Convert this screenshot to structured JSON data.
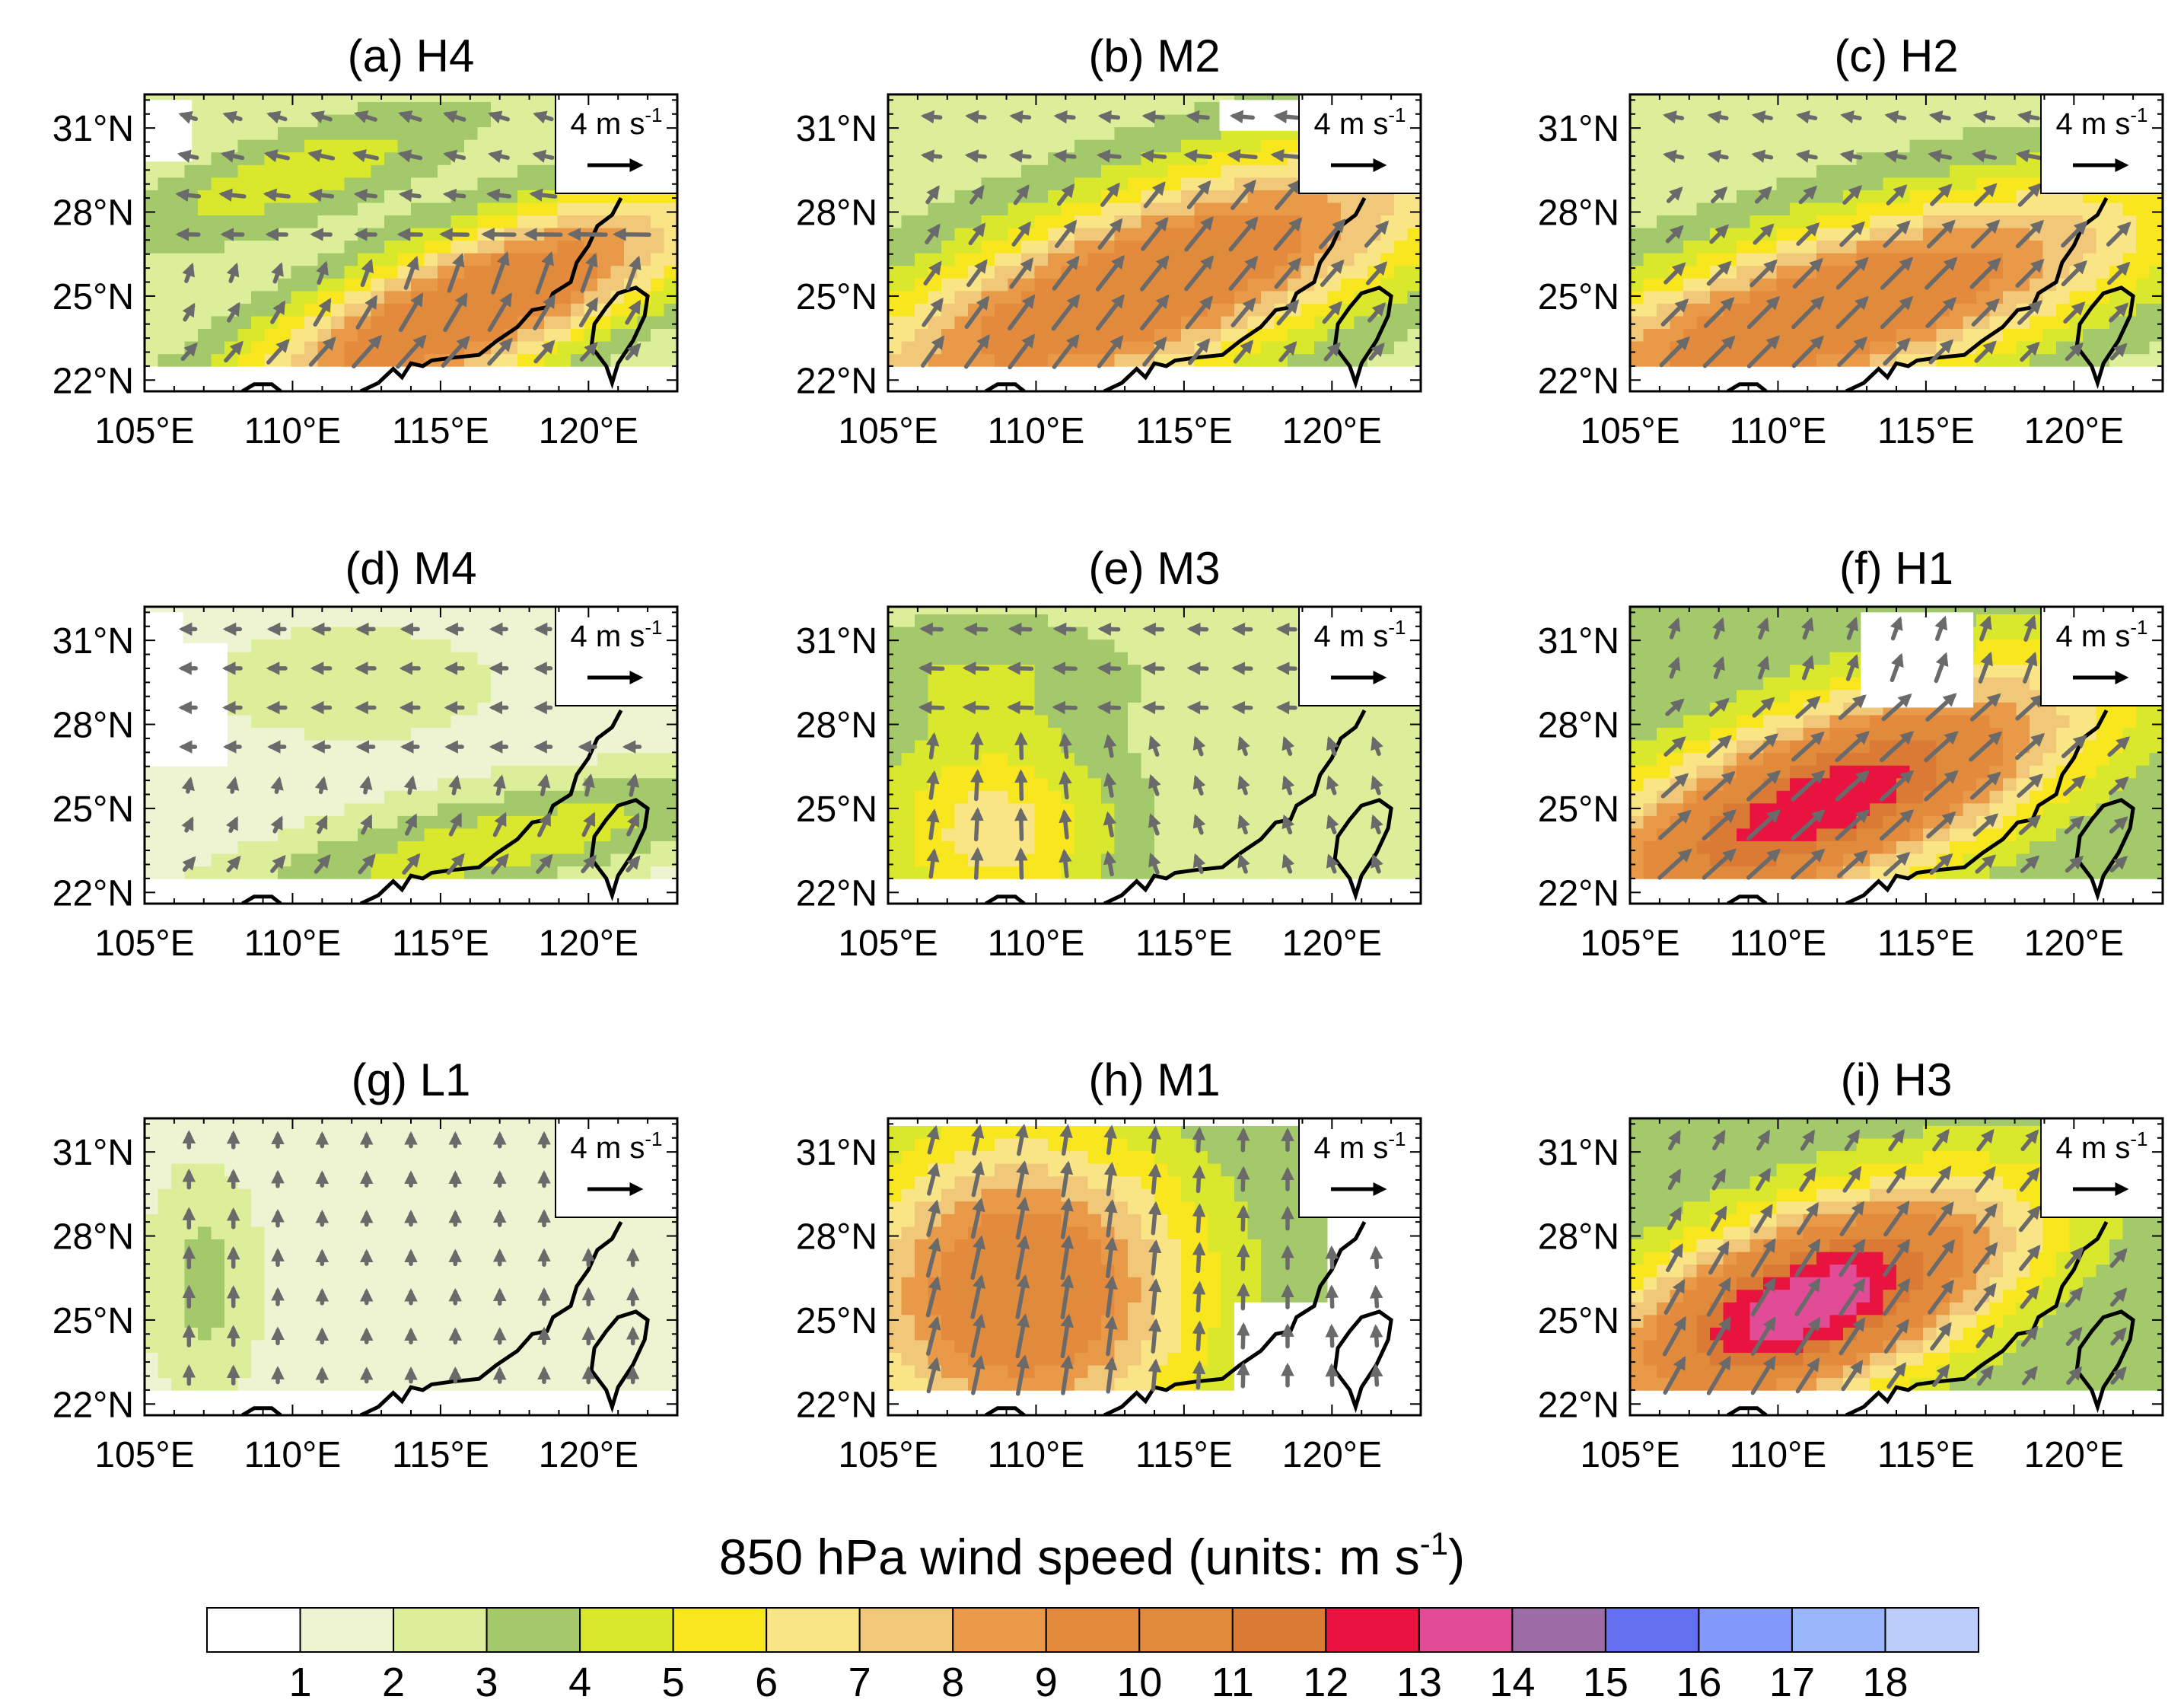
{
  "figure": {
    "colorbar": {
      "title_main": "850 hPa wind speed (units: m s",
      "title_sup": "-1",
      "title_close": ")",
      "tick_labels": [
        "1",
        "2",
        "3",
        "4",
        "5",
        "6",
        "7",
        "8",
        "9",
        "10",
        "11",
        "12",
        "13",
        "14",
        "15",
        "16",
        "17",
        "18"
      ],
      "colors": [
        "#ffffff",
        "#eef4d2",
        "#dcee9a",
        "#a4c96a",
        "#d9e82c",
        "#f8e61e",
        "#fae586",
        "#f1c879",
        "#e89a48",
        "#e38a3c",
        "#e08a3c",
        "#da7a35",
        "#e8143f",
        "#e24c97",
        "#9d6da8",
        "#6270ef",
        "#8199f8",
        "#99b6fb",
        "#bcccfb"
      ]
    },
    "map_labels": {
      "lon_ticks": [
        "105°E",
        "110°E",
        "115°E",
        "120°E"
      ],
      "lat_ticks": [
        "31°N",
        "28°N",
        "25°N",
        "22°N"
      ]
    },
    "reference_vector": {
      "magnitude": "4 m s",
      "unit_sup": "-1"
    },
    "wind_arrow_color": "#6a6a6a",
    "coastline_color": "#000000"
  },
  "chart_data": [
    {
      "type": "heatmap",
      "title": "(a) H4",
      "xlim": [
        105,
        123
      ],
      "ylim": [
        21.6,
        32.2
      ],
      "max_speed": 11,
      "core_lon": 115,
      "core_lat": 24.5,
      "flow": "southwesterly core in south, easterly in north"
    },
    {
      "type": "heatmap",
      "title": "(b) M2",
      "xlim": [
        105,
        123
      ],
      "ylim": [
        21.6,
        32.2
      ],
      "max_speed": 11,
      "core_lon": 114,
      "core_lat": 25.5,
      "flow": "southwesterly"
    },
    {
      "type": "heatmap",
      "title": "(c) H2",
      "xlim": [
        105,
        123
      ],
      "ylim": [
        21.6,
        32.2
      ],
      "max_speed": 11,
      "core_lon": 111,
      "core_lat": 24,
      "flow": "southwesterly"
    },
    {
      "type": "heatmap",
      "title": "(d) M4",
      "xlim": [
        105,
        123
      ],
      "ylim": [
        21.6,
        32.2
      ],
      "max_speed": 5,
      "core_lon": 118,
      "core_lat": 23.5,
      "flow": "easterly north, southwesterly south"
    },
    {
      "type": "heatmap",
      "title": "(e) M3",
      "xlim": [
        105,
        123
      ],
      "ylim": [
        21.6,
        32.2
      ],
      "max_speed": 7,
      "core_lon": 109,
      "core_lat": 24,
      "flow": "southerly west, easterly north"
    },
    {
      "type": "heatmap",
      "title": "(f) H1",
      "xlim": [
        105,
        123
      ],
      "ylim": [
        21.6,
        32.2
      ],
      "max_speed": 13,
      "core_lon": 111,
      "core_lat": 25,
      "flow": "strong southwesterly jet"
    },
    {
      "type": "heatmap",
      "title": "(g) L1",
      "xlim": [
        105,
        123
      ],
      "ylim": [
        21.6,
        32.2
      ],
      "max_speed": 3,
      "core_lon": 107,
      "core_lat": 26,
      "flow": "weak southerly"
    },
    {
      "type": "heatmap",
      "title": "(h) M1",
      "xlim": [
        105,
        123
      ],
      "ylim": [
        21.6,
        32.2
      ],
      "max_speed": 11,
      "core_lon": 109,
      "core_lat": 26,
      "flow": "southerly"
    },
    {
      "type": "heatmap",
      "title": "(i) H3",
      "xlim": [
        105,
        123
      ],
      "ylim": [
        21.6,
        32.2
      ],
      "max_speed": 14,
      "core_lon": 111,
      "core_lat": 26,
      "flow": "strong southwesterly jet"
    }
  ]
}
